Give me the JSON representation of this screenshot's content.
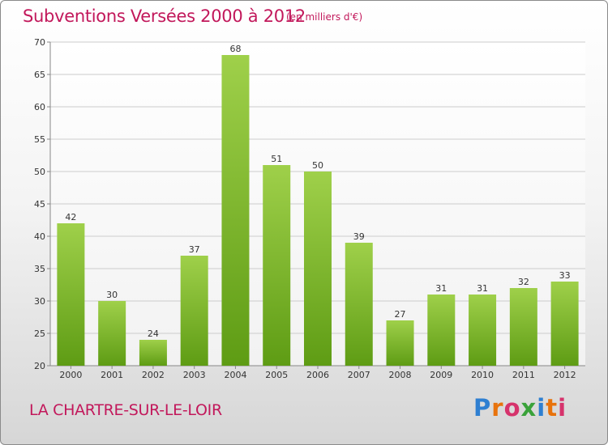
{
  "header": {
    "title": "Subventions Versées 2000 à 2012",
    "subtitle": "(en milliers d'€)"
  },
  "footer": {
    "commune": "LA CHARTRE-SUR-LE-LOIR",
    "brand": "Proxiti",
    "brand_colors": [
      "#2e7fd1",
      "#e8730c",
      "#d6336c",
      "#3aa23a",
      "#2e7fd1",
      "#e8730c",
      "#d6336c"
    ]
  },
  "colors": {
    "title": "#c2185b",
    "bar_light": "#9fd04a",
    "bar_dark": "#5e9c14",
    "grid": "#cccccc"
  },
  "chart_data": {
    "type": "bar",
    "title": "Subventions Versées 2000 à 2012",
    "subtitle": "(en milliers d'€)",
    "categories": [
      "2000",
      "2001",
      "2002",
      "2003",
      "2004",
      "2005",
      "2006",
      "2007",
      "2008",
      "2009",
      "2010",
      "2011",
      "2012"
    ],
    "values": [
      42,
      30,
      24,
      37,
      68,
      51,
      50,
      39,
      27,
      31,
      31,
      32,
      33
    ],
    "ylim": [
      20,
      70
    ],
    "yticks": [
      20,
      25,
      30,
      35,
      40,
      45,
      50,
      55,
      60,
      65,
      70
    ],
    "grid": true,
    "data_labels": true
  }
}
